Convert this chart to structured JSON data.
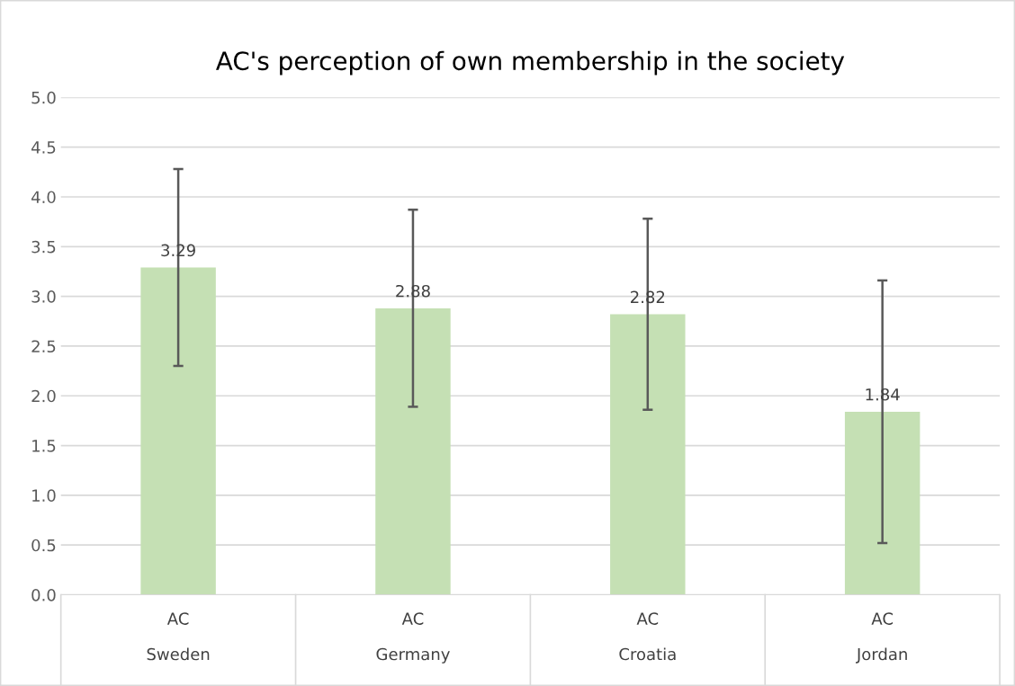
{
  "chart_data": {
    "type": "bar",
    "title": "AC's perception of own membership in the society",
    "categories": [
      "AC\nSweden",
      "AC\nGermany",
      "AC\nCroatia",
      "AC\nJordan"
    ],
    "values": [
      3.29,
      2.88,
      2.82,
      1.84
    ],
    "errors": [
      0.99,
      0.99,
      0.96,
      1.32
    ],
    "color": "#c5e0b4",
    "ylim": [
      0,
      5
    ],
    "yticks": [
      {
        "value": 0,
        "label": "0.0"
      },
      {
        "value": 0.5,
        "label": "0.5"
      },
      {
        "value": 1,
        "label": "1.0"
      },
      {
        "value": 1.5,
        "label": "1.5"
      },
      {
        "value": 2,
        "label": "2.0"
      },
      {
        "value": 2.5,
        "label": "2.5"
      },
      {
        "value": 3,
        "label": "3.0"
      },
      {
        "value": 3.5,
        "label": "3.5"
      },
      {
        "value": 4,
        "label": "4.0"
      },
      {
        "value": 4.5,
        "label": "4.5"
      },
      {
        "value": 5,
        "label": "5.0"
      }
    ],
    "grid": "y",
    "data_labels": true
  }
}
